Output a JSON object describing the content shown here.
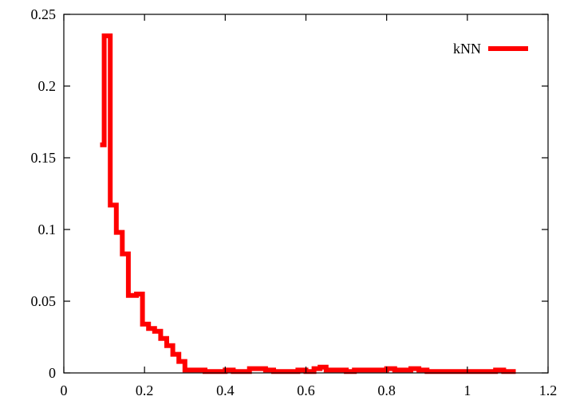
{
  "chart_data": {
    "type": "line",
    "step": true,
    "title": "",
    "xlabel": "",
    "ylabel": "",
    "xlim": [
      0,
      1.2
    ],
    "ylim": [
      0,
      0.25
    ],
    "x_ticks": [
      0,
      0.2,
      0.4,
      0.6,
      0.8,
      1,
      1.2
    ],
    "x_tick_labels": [
      "0",
      "0.2",
      "0.4",
      "0.6",
      "0.8",
      "1",
      "1.2"
    ],
    "y_ticks": [
      0,
      0.05,
      0.1,
      0.15,
      0.2,
      0.25
    ],
    "y_tick_labels": [
      "0",
      "0.05",
      "0.1",
      "0.15",
      "0.2",
      "0.25"
    ],
    "grid": false,
    "legend_position": "top-right",
    "series": [
      {
        "name": "kNN",
        "color": "#ff0000",
        "x": [
          0.09,
          0.1,
          0.115,
          0.13,
          0.145,
          0.16,
          0.18,
          0.195,
          0.21,
          0.225,
          0.24,
          0.255,
          0.27,
          0.285,
          0.3,
          0.33,
          0.35,
          0.38,
          0.4,
          0.42,
          0.44,
          0.46,
          0.5,
          0.52,
          0.56,
          0.58,
          0.6,
          0.62,
          0.635,
          0.65,
          0.67,
          0.7,
          0.72,
          0.74,
          0.76,
          0.8,
          0.82,
          0.84,
          0.86,
          0.88,
          0.9,
          0.95,
          1.0,
          1.04,
          1.07,
          1.09,
          1.12
        ],
        "y": [
          0.159,
          0.235,
          0.117,
          0.098,
          0.083,
          0.054,
          0.055,
          0.034,
          0.031,
          0.029,
          0.024,
          0.019,
          0.013,
          0.008,
          0.002,
          0.002,
          0.001,
          0.001,
          0.002,
          0.001,
          0.001,
          0.003,
          0.002,
          0.001,
          0.001,
          0.002,
          0.001,
          0.003,
          0.004,
          0.002,
          0.002,
          0.001,
          0.002,
          0.002,
          0.002,
          0.003,
          0.002,
          0.002,
          0.003,
          0.002,
          0.001,
          0.001,
          0.001,
          0.001,
          0.002,
          0.001,
          0.001
        ]
      }
    ]
  }
}
